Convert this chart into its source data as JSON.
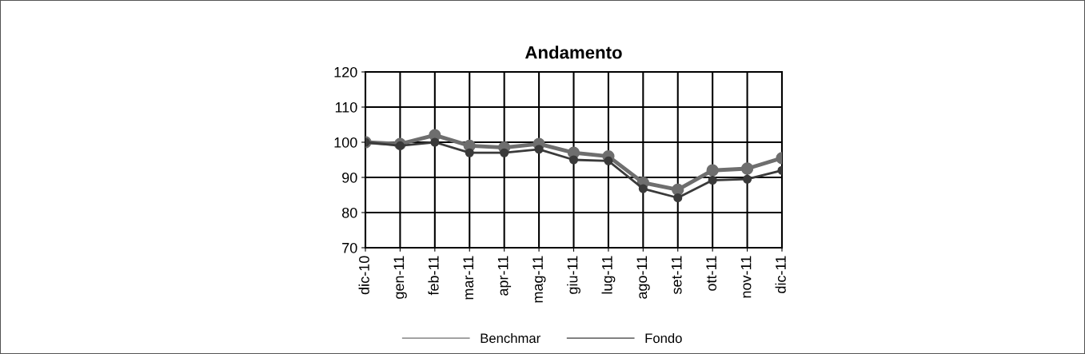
{
  "chart_data": {
    "type": "line",
    "title": "Andamento",
    "categories": [
      "dic-10",
      "gen-11",
      "feb-11",
      "mar-11",
      "apr-11",
      "mag-11",
      "giu-11",
      "lug-11",
      "ago-11",
      "set-11",
      "ott-11",
      "nov-11",
      "dic-11"
    ],
    "series": [
      {
        "name": "Benchmar",
        "color": "#6e6e6e",
        "values": [
          100,
          99.5,
          102,
          99,
          98.5,
          99.5,
          97,
          96,
          88.5,
          86.5,
          92,
          92.5,
          95.5
        ]
      },
      {
        "name": "Fondo",
        "color": "#3a3a3a",
        "values": [
          100,
          99,
          100,
          97,
          97,
          98,
          95,
          94.7,
          86.8,
          84.2,
          89.2,
          89.5,
          92
        ]
      }
    ],
    "ylim": [
      70,
      120
    ],
    "yticks": [
      70,
      80,
      90,
      100,
      110,
      120
    ],
    "grid": true,
    "legend": "bottom",
    "marker": "circle"
  }
}
